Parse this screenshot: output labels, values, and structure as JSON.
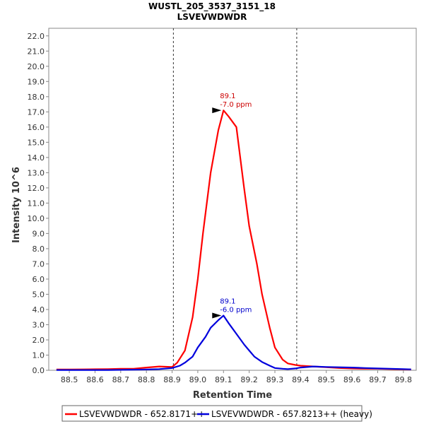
{
  "chart_data": {
    "type": "line",
    "title": "WUSTL_205_3537_3151_18",
    "subtitle": "LSVEVWDWDR",
    "xlabel": "Retention Time",
    "ylabel": "Intensity 10^6",
    "xlim": [
      88.42,
      89.85
    ],
    "ylim": [
      0,
      22.5
    ],
    "x_ticks": [
      "88.5",
      "88.6",
      "88.7",
      "88.8",
      "88.9",
      "89.0",
      "89.1",
      "89.2",
      "89.3",
      "89.4",
      "89.5",
      "89.6",
      "89.7",
      "89.8"
    ],
    "x_tick_values": [
      88.5,
      88.6,
      88.7,
      88.8,
      88.9,
      89.0,
      89.1,
      89.2,
      89.3,
      89.4,
      89.5,
      89.6,
      89.7,
      89.8
    ],
    "y_ticks": [
      "0.0",
      "1.0",
      "2.0",
      "3.0",
      "4.0",
      "5.0",
      "6.0",
      "7.0",
      "8.0",
      "9.0",
      "10.0",
      "11.0",
      "12.0",
      "13.0",
      "14.0",
      "15.0",
      "16.0",
      "17.0",
      "18.0",
      "19.0",
      "20.0",
      "21.0",
      "22.0"
    ],
    "y_tick_values": [
      0,
      1,
      2,
      3,
      4,
      5,
      6,
      7,
      8,
      9,
      10,
      11,
      12,
      13,
      14,
      15,
      16,
      17,
      18,
      19,
      20,
      21,
      22
    ],
    "vlines": [
      88.905,
      89.385
    ],
    "grid": false,
    "legend_position": "bottom",
    "series": [
      {
        "name": "LSVEVWDWDR - 652.8171++",
        "color": "#ff0000",
        "x": [
          88.45,
          88.5,
          88.55,
          88.6,
          88.65,
          88.7,
          88.75,
          88.8,
          88.85,
          88.9,
          88.92,
          88.95,
          88.98,
          89.0,
          89.02,
          89.05,
          89.08,
          89.1,
          89.12,
          89.15,
          89.18,
          89.2,
          89.23,
          89.25,
          89.28,
          89.3,
          89.33,
          89.35,
          89.38,
          89.4,
          89.45,
          89.5,
          89.55,
          89.6,
          89.65,
          89.7,
          89.75,
          89.8,
          89.83
        ],
        "y": [
          0.05,
          0.05,
          0.06,
          0.07,
          0.08,
          0.1,
          0.1,
          0.18,
          0.25,
          0.22,
          0.5,
          1.3,
          3.5,
          6.0,
          9.0,
          13.0,
          15.8,
          17.1,
          16.7,
          16.0,
          12.0,
          9.5,
          7.0,
          5.0,
          2.8,
          1.5,
          0.7,
          0.45,
          0.35,
          0.3,
          0.25,
          0.2,
          0.15,
          0.12,
          0.1,
          0.1,
          0.08,
          0.06,
          0.05
        ]
      },
      {
        "name": "LSVEVWDWDR - 657.8213++ (heavy)",
        "color": "#0000dd",
        "x": [
          88.45,
          88.5,
          88.55,
          88.6,
          88.65,
          88.7,
          88.75,
          88.8,
          88.85,
          88.9,
          88.93,
          88.95,
          88.98,
          89.0,
          89.03,
          89.05,
          89.08,
          89.1,
          89.12,
          89.15,
          89.18,
          89.2,
          89.22,
          89.25,
          89.28,
          89.3,
          89.33,
          89.35,
          89.38,
          89.4,
          89.45,
          89.5,
          89.55,
          89.6,
          89.65,
          89.7,
          89.75,
          89.8,
          89.83
        ],
        "y": [
          0.02,
          0.02,
          0.02,
          0.02,
          0.02,
          0.03,
          0.04,
          0.05,
          0.08,
          0.15,
          0.3,
          0.5,
          0.9,
          1.5,
          2.2,
          2.8,
          3.3,
          3.6,
          3.1,
          2.4,
          1.7,
          1.3,
          0.9,
          0.55,
          0.3,
          0.15,
          0.1,
          0.08,
          0.12,
          0.18,
          0.25,
          0.22,
          0.2,
          0.18,
          0.15,
          0.12,
          0.1,
          0.08,
          0.06
        ]
      }
    ],
    "annotations": [
      {
        "series": 0,
        "x": 89.1,
        "y": 17.1,
        "line1": "89.1",
        "line2": "-7.0 ppm",
        "color": "#cc0000"
      },
      {
        "series": 1,
        "x": 89.1,
        "y": 3.6,
        "line1": "89.1",
        "line2": "-6.0 ppm",
        "color": "#0000cc"
      }
    ]
  }
}
